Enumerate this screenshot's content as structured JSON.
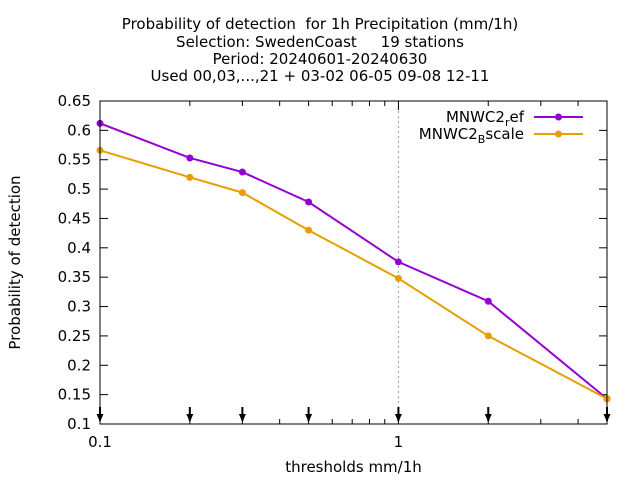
{
  "chart_data": {
    "type": "line",
    "title_lines": [
      "Probability of detection  for 1h Precipitation (mm/1h)",
      "Selection: SwedenCoast     19 stations",
      "Period: 20240601-20240630",
      "Used 00,03,...,21 + 03-02 06-05 09-08 12-11"
    ],
    "xlabel": "thresholds mm/1h",
    "ylabel": "Probability of detection",
    "xscale": "log",
    "xlim": [
      0.1,
      5
    ],
    "ylim": [
      0.1,
      0.65
    ],
    "yticks": [
      "0.1",
      "0.15",
      "0.2",
      "0.25",
      "0.3",
      "0.35",
      "0.4",
      "0.45",
      "0.5",
      "0.55",
      "0.6",
      "0.65"
    ],
    "xticks": [
      "0.1",
      "1"
    ],
    "legend_position": "top-right",
    "x": [
      0.1,
      0.2,
      0.3,
      0.5,
      1,
      2,
      5
    ],
    "series": [
      {
        "name": "MNWC2_ref",
        "name_base": "MNWC2",
        "name_sub": "r",
        "name_rest": "ef",
        "color": "#9400d3",
        "values": [
          0.612,
          0.553,
          0.529,
          0.478,
          0.376,
          0.309,
          0.143
        ]
      },
      {
        "name": "MNWC2_Bscale",
        "name_base": "MNWC2",
        "name_sub": "B",
        "name_rest": "scale",
        "color": "#e69f00",
        "values": [
          0.566,
          0.52,
          0.494,
          0.43,
          0.348,
          0.25,
          0.143
        ]
      }
    ]
  }
}
